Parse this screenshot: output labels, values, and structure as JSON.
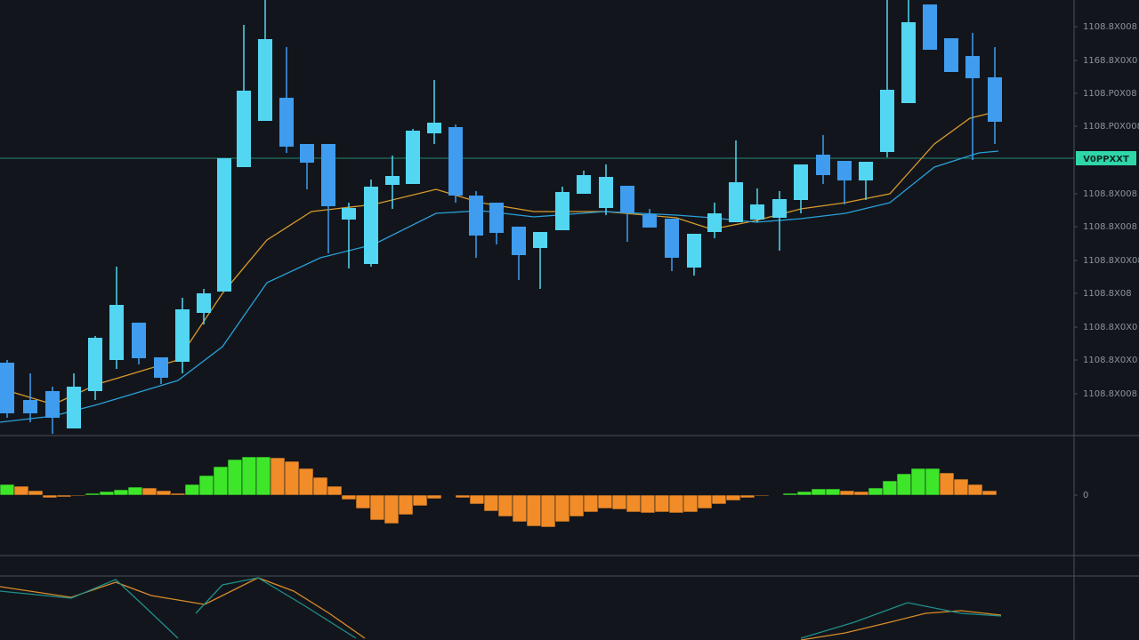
{
  "chart_data": [
    {
      "type": "candlestick",
      "x": [
        8,
        34,
        59,
        83,
        107,
        131,
        156,
        181,
        205,
        229,
        252,
        274,
        298,
        322,
        345,
        369,
        392,
        417,
        441,
        464,
        488,
        512,
        535,
        558,
        583,
        607,
        632,
        656,
        681,
        705,
        730,
        755,
        780,
        803,
        827,
        851,
        876,
        900,
        925,
        949,
        973,
        997,
        1021,
        1045,
        1069,
        1093,
        1118
      ],
      "open": [
        82,
        40,
        50,
        8,
        50,
        85,
        127,
        88,
        83,
        138,
        162,
        302,
        354,
        380,
        328,
        328,
        243,
        193,
        282,
        283,
        340,
        347,
        270,
        262,
        235,
        211,
        231,
        272,
        256,
        281,
        249,
        244,
        189,
        229,
        240,
        243,
        245,
        265,
        316,
        309,
        287,
        319,
        374,
        485,
        447,
        427,
        403
      ],
      "high": [
        85,
        70,
        55,
        70,
        112,
        190,
        127,
        88,
        155,
        165,
        312,
        462,
        490,
        437,
        328,
        328,
        262,
        288,
        315,
        345,
        400,
        350,
        275,
        262,
        235,
        229,
        280,
        298,
        305,
        281,
        255,
        244,
        227,
        262,
        332,
        278,
        275,
        305,
        338,
        309,
        308,
        490,
        490,
        485,
        447,
        453,
        437
      ],
      "low": [
        20,
        15,
        2,
        8,
        40,
        75,
        80,
        58,
        70,
        125,
        162,
        302,
        354,
        318,
        277,
        205,
        188,
        190,
        255,
        283,
        328,
        262,
        200,
        215,
        175,
        165,
        231,
        272,
        248,
        218,
        234,
        185,
        180,
        222,
        240,
        240,
        208,
        250,
        283,
        260,
        265,
        313,
        374,
        434,
        409,
        310,
        328
      ],
      "close": [
        25,
        25,
        20,
        55,
        110,
        147,
        87,
        65,
        142,
        160,
        312,
        388,
        446,
        325,
        307,
        258,
        256,
        280,
        292,
        343,
        352,
        270,
        225,
        228,
        203,
        229,
        274,
        293,
        291,
        251,
        234,
        200,
        227,
        250,
        285,
        260,
        266,
        305,
        293,
        287,
        308,
        389,
        465,
        434,
        409,
        402,
        353
      ],
      "up_color": "#52d6f2",
      "down_color": "#3f9cee",
      "series": [
        {
          "color": "#d99a2b",
          "x": [
            0,
            60,
            110,
            200,
            250,
            300,
            350,
            420,
            490,
            540,
            600,
            680,
            760,
            800,
            850,
            900,
            950,
            1000,
            1050,
            1090,
            1110
          ],
          "values": [
            53,
            35,
            58,
            85,
            160,
            220,
            252,
            260,
            277,
            262,
            252,
            252,
            245,
            232,
            242,
            255,
            262,
            272,
            328,
            357,
            362
          ]
        },
        {
          "color": "#2a9fd8",
          "x": [
            0,
            60,
            110,
            200,
            250,
            300,
            360,
            420,
            490,
            540,
            600,
            680,
            760,
            800,
            850,
            900,
            950,
            1000,
            1050,
            1100,
            1122
          ],
          "values": [
            15,
            22,
            35,
            62,
            100,
            172,
            200,
            215,
            250,
            253,
            246,
            252,
            248,
            245,
            240,
            244,
            250,
            262,
            302,
            318,
            320
          ]
        }
      ],
      "last_price": {
        "value": 312,
        "label": "V0PPXXT",
        "color": "#2fd6a8"
      },
      "xlim": [
        0,
        1207
      ],
      "ylim": [
        0,
        490
      ],
      "yticks": [
        {
          "value": 460,
          "label": "1108.8X008"
        },
        {
          "value": 422,
          "label": "1168.8X0X0"
        },
        {
          "value": 385,
          "label": "1108.P0X08"
        },
        {
          "value": 348,
          "label": "1108.P0X008"
        },
        {
          "value": 272,
          "label": "1108.8X008"
        },
        {
          "value": 235,
          "label": "1108.8X008"
        },
        {
          "value": 197,
          "label": "1108.8X0X08"
        },
        {
          "value": 160,
          "label": "1108.8X08"
        },
        {
          "value": 122,
          "label": "1108.8X0X0"
        },
        {
          "value": 85,
          "label": "1108.8X0X0"
        },
        {
          "value": 47,
          "label": "1108.8X008"
        }
      ]
    },
    {
      "type": "histogram-oscillator",
      "x": [
        8,
        24,
        40,
        56,
        72,
        88,
        104,
        120,
        136,
        152,
        168,
        184,
        200,
        216,
        232,
        248,
        264,
        280,
        296,
        312,
        328,
        344,
        360,
        376,
        392,
        408,
        424,
        440,
        456,
        472,
        488,
        504,
        520,
        536,
        552,
        568,
        584,
        600,
        616,
        632,
        648,
        664,
        680,
        696,
        712,
        728,
        744,
        760,
        776,
        792,
        808,
        824,
        840,
        856,
        872,
        888,
        904,
        920,
        936,
        952,
        968,
        984,
        1000,
        1016,
        1032,
        1048,
        1064,
        1080,
        1096,
        1112
      ],
      "values": [
        12,
        10,
        5,
        -3,
        -2,
        -1,
        2,
        4,
        6,
        9,
        8,
        5,
        2,
        12,
        22,
        32,
        40,
        43,
        43,
        42,
        38,
        30,
        20,
        10,
        -5,
        -15,
        -28,
        -32,
        -22,
        -12,
        -4,
        0,
        -3,
        -10,
        -18,
        -24,
        -30,
        -35,
        -36,
        -30,
        -24,
        -19,
        -15,
        -16,
        -19,
        -20,
        -19,
        -20,
        -19,
        -15,
        -10,
        -6,
        -3,
        -1,
        0,
        2,
        4,
        7,
        7,
        5,
        4,
        8,
        16,
        24,
        30,
        30,
        25,
        18,
        12,
        5
      ],
      "rising_color": "#3ee62a",
      "falling_color": "#f28c28",
      "xlim": [
        0,
        1207
      ],
      "ylim": [
        -68,
        67
      ],
      "yticks": [
        0
      ]
    },
    {
      "type": "line",
      "series": [
        {
          "color": "#d98a2b",
          "x": [
            0,
            80,
            130,
            170,
            230,
            290,
            330,
            370,
            410,
            650,
            900,
            950,
            1000,
            1040,
            1080,
            1125
          ],
          "values": [
            60,
            48,
            65,
            50,
            40,
            70,
            55,
            30,
            2,
            null,
            0,
            8,
            20,
            30,
            33,
            28
          ]
        },
        {
          "color": "#1f8f8a",
          "x": [
            0,
            80,
            130,
            160,
            200,
            210,
            220,
            250,
            290,
            340,
            400,
            650,
            900,
            960,
            1020,
            1080,
            1125
          ],
          "values": [
            55,
            47,
            68,
            40,
            2,
            null,
            30,
            62,
            70,
            40,
            2,
            null,
            2,
            20,
            42,
            30,
            27
          ]
        }
      ],
      "xlim": [
        0,
        1207
      ],
      "ylim": [
        0,
        72
      ]
    }
  ]
}
